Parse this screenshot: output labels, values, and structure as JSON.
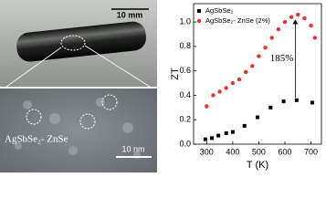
{
  "photo": {
    "scale_label": "10 mm"
  },
  "tem": {
    "label": "AgSbSe₂- ZnSe",
    "scale_label": "10 nm"
  },
  "chart_data": {
    "type": "scatter",
    "xlabel": "T (K)",
    "ylabel": "ZT",
    "xlim": [
      250,
      740
    ],
    "ylim": [
      0,
      1.15
    ],
    "xticks": [
      300,
      400,
      500,
      600,
      700
    ],
    "yticks": [
      {
        "value": 0,
        "label": "0.0"
      },
      {
        "value": 0.2,
        "label": "0.2"
      },
      {
        "value": 0.4,
        "label": "0.4"
      },
      {
        "value": 0.6,
        "label": "0.6"
      },
      {
        "value": 0.8,
        "label": "0.8"
      },
      {
        "value": 1.0,
        "label": "1.0"
      }
    ],
    "legend": "upper left",
    "series": [
      {
        "name": "AgSbSe₂",
        "color": "#000000",
        "marker": "square",
        "x": [
          295,
          320,
          345,
          375,
          400,
          445,
          495,
          545,
          595,
          645,
          705
        ],
        "values": [
          0.04,
          0.05,
          0.07,
          0.09,
          0.1,
          0.15,
          0.22,
          0.3,
          0.35,
          0.36,
          0.34
        ]
      },
      {
        "name": "AgSbSe₂- ZnSe (2%)",
        "color": "#e8322e",
        "marker": "circle",
        "x": [
          300,
          325,
          350,
          375,
          400,
          425,
          450,
          475,
          500,
          525,
          550,
          575,
          600,
          625,
          650,
          675,
          700,
          715
        ],
        "values": [
          0.31,
          0.4,
          0.43,
          0.46,
          0.5,
          0.53,
          0.59,
          0.64,
          0.72,
          0.79,
          0.87,
          0.94,
          1.0,
          1.04,
          1.06,
          1.03,
          0.97,
          0.87
        ]
      }
    ],
    "annotation": {
      "text": "185%",
      "x": 640,
      "y_from": 0.38,
      "y_to": 1.02
    }
  }
}
